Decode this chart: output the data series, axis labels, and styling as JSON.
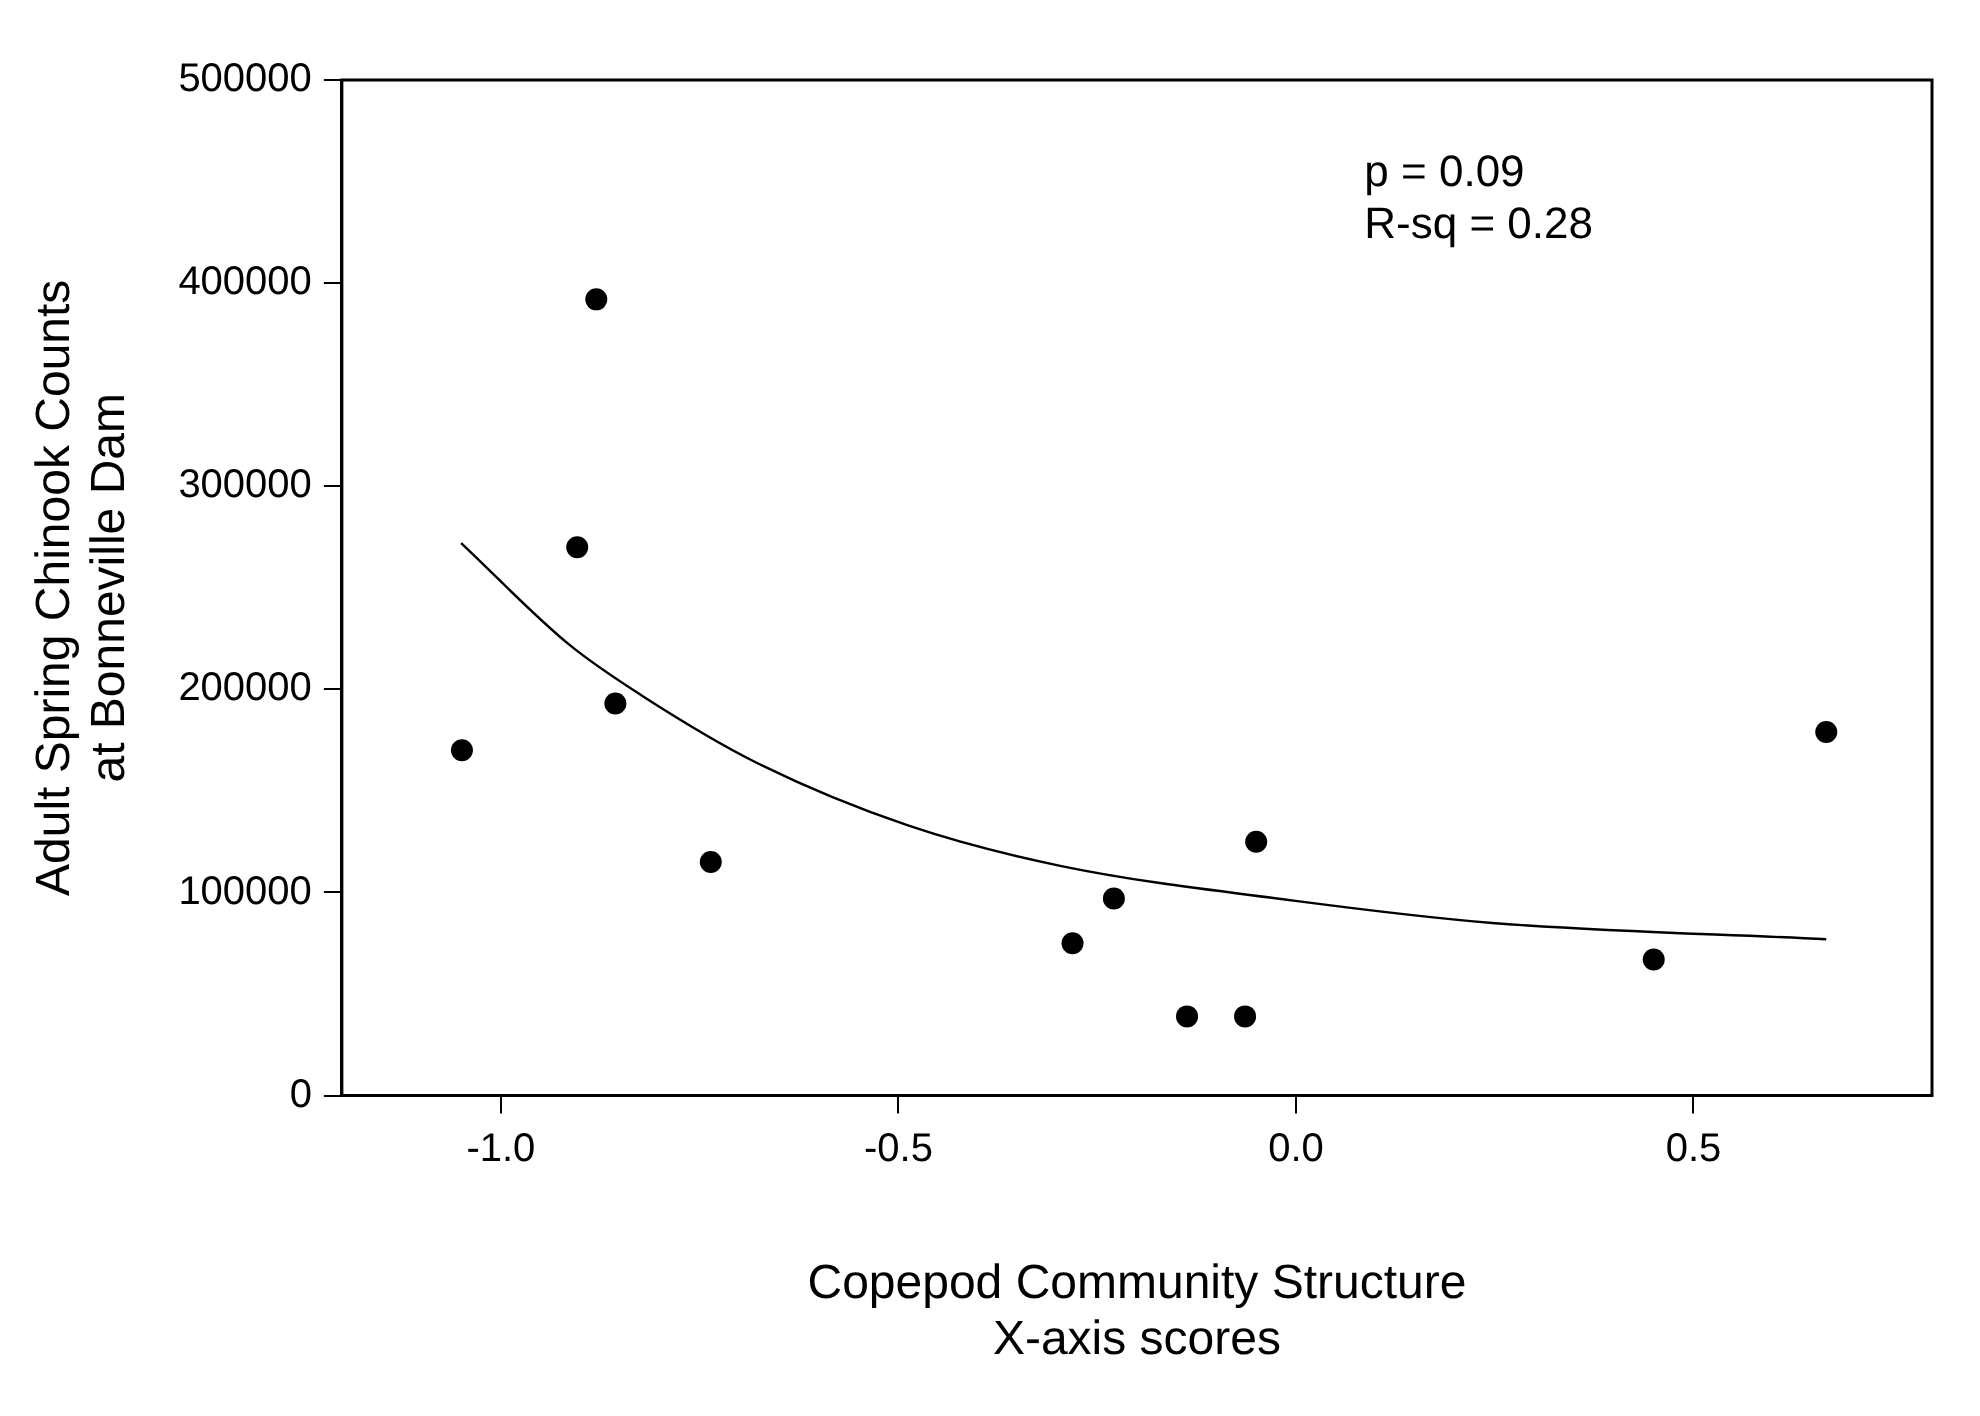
{
  "chart_data": {
    "type": "scatter",
    "xlabel": "Copepod Community Structure\nX-axis scores",
    "ylabel": "Adult Spring Chinook Counts\nat Bonneville Dam",
    "annotations": [
      "p = 0.09",
      "R-sq = 0.28"
    ],
    "x": [
      -1.049,
      -0.88,
      -0.904,
      -0.856,
      -0.736,
      -0.281,
      -0.229,
      -0.137,
      -0.064,
      -0.05,
      0.45,
      0.667
    ],
    "series": [
      {
        "color": "#000000",
        "marker": "circle",
        "values": [
          170000,
          392000,
          270000,
          193000,
          115000,
          75000,
          97000,
          39000,
          39000,
          125000,
          67000,
          179000
        ]
      },
      {
        "type": "line",
        "color": "#000000",
        "marker": "none",
        "x": [
          -1.05,
          -0.914,
          -0.823,
          -0.679,
          -0.488,
          -0.295,
          -0.003,
          0.247,
          0.667
        ],
        "values": [
          272000,
          222000,
          197000,
          164000,
          133000,
          113000,
          96000,
          85000,
          77000
        ]
      }
    ],
    "xlim": [
      -1.2,
      0.8
    ],
    "xticks": [
      {
        "value": -1,
        "label": "-1.0"
      },
      -0.5,
      {
        "value": 0,
        "label": "0.0"
      },
      0.5
    ],
    "ylim": [
      0,
      500000
    ],
    "yticks": [
      0,
      100000,
      200000,
      300000,
      400000,
      500000
    ],
    "grid": false,
    "legend": false
  }
}
